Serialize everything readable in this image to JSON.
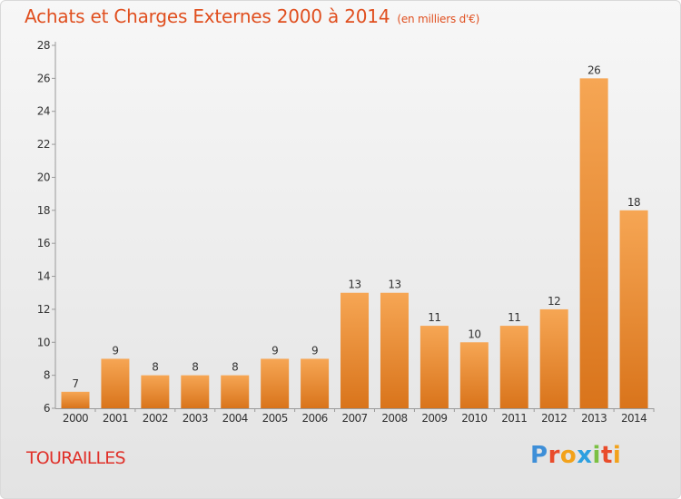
{
  "header": {
    "title": "Achats et Charges Externes 2000 à 2014",
    "unit": "(en milliers d'€)"
  },
  "footer": {
    "place": "TOURAILLES",
    "brand": [
      "P",
      "r",
      "o",
      "x",
      "i",
      "t",
      "i"
    ]
  },
  "colors": {
    "title": "#e04f1f",
    "place": "#e0312a",
    "bar_light": "#f6a654",
    "bar_dark": "#d9741b"
  },
  "chart_data": {
    "type": "bar",
    "title": "Achats et Charges Externes 2000 à 2014",
    "subtitle": "(en milliers d'€)",
    "categories": [
      "2000",
      "2001",
      "2002",
      "2003",
      "2004",
      "2005",
      "2006",
      "2007",
      "2008",
      "2009",
      "2010",
      "2011",
      "2012",
      "2013",
      "2014"
    ],
    "values": [
      7,
      9,
      8,
      8,
      8,
      9,
      9,
      13,
      13,
      11,
      10,
      11,
      12,
      26,
      18
    ],
    "ylim": [
      6,
      28
    ],
    "yticks": [
      6,
      8,
      10,
      12,
      14,
      16,
      18,
      20,
      22,
      24,
      26,
      28
    ],
    "grid": false,
    "data_labels": true
  }
}
